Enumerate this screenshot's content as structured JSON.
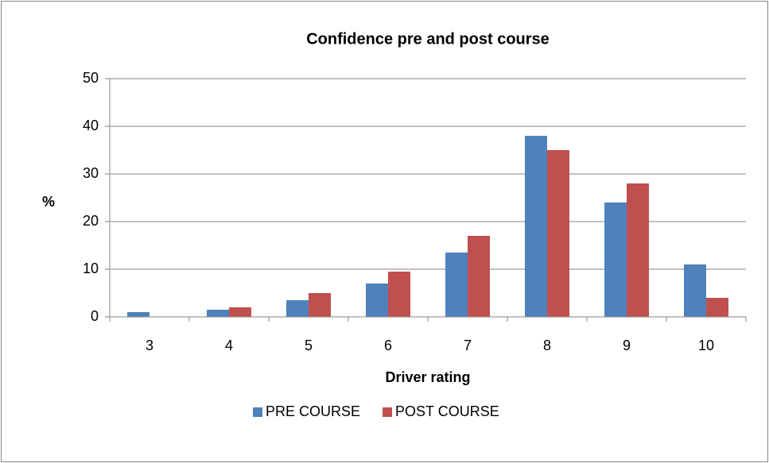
{
  "chart_data": {
    "type": "bar",
    "title": "Confidence pre and post course",
    "x_label": "Driver rating",
    "y_label": "%",
    "categories": [
      "3",
      "4",
      "5",
      "6",
      "7",
      "8",
      "9",
      "10"
    ],
    "series": [
      {
        "name": "PRE COURSE",
        "color": "#4f81bd",
        "values": [
          1,
          1.5,
          3.5,
          7,
          13.5,
          38,
          24,
          11
        ]
      },
      {
        "name": "POST COURSE",
        "color": "#c0504d",
        "values": [
          0,
          2,
          5,
          9.5,
          17,
          35,
          28,
          4
        ]
      }
    ],
    "ylim": [
      0,
      50
    ],
    "yticks": [
      0,
      10,
      20,
      30,
      40,
      50
    ],
    "grid": true,
    "legend": "bottom"
  }
}
